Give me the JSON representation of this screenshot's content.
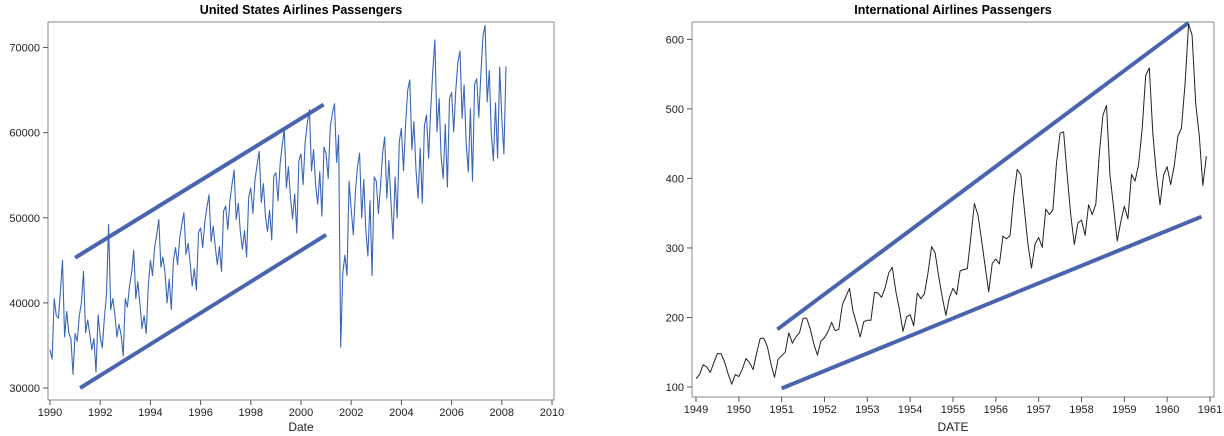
{
  "chart_data": [
    {
      "type": "line",
      "title": "United States Airlines Passengers",
      "xlabel": "Date",
      "ylabel": "",
      "xlim": [
        1990,
        2010
      ],
      "ylim": [
        30000,
        73000
      ],
      "xticks": [
        "1990",
        "1992",
        "1994",
        "1996",
        "1998",
        "2000",
        "2002",
        "2004",
        "2006",
        "2008",
        "2010"
      ],
      "yticks": [
        "30000",
        "40000",
        "50000",
        "60000",
        "70000"
      ],
      "grid": false,
      "line_color": "#3a66b8",
      "trend_color": "#4a65ae",
      "series": [
        {
          "x": [
            1990.0,
            1990.083,
            1990.167,
            1990.25,
            1990.333,
            1990.417,
            1990.5,
            1990.583,
            1990.667,
            1990.75,
            1990.833,
            1990.917,
            1991.0,
            1991.083,
            1991.167,
            1991.25,
            1991.333,
            1991.417,
            1991.5,
            1991.583,
            1991.667,
            1991.75,
            1991.833,
            1991.917,
            1992.0,
            1992.083,
            1992.167,
            1992.25,
            1992.333,
            1992.417,
            1992.5,
            1992.583,
            1992.667,
            1992.75,
            1992.833,
            1992.917,
            1993.0,
            1993.083,
            1993.167,
            1993.25,
            1993.333,
            1993.417,
            1993.5,
            1993.583,
            1993.667,
            1993.75,
            1993.833,
            1993.917,
            1994.0,
            1994.083,
            1994.167,
            1994.25,
            1994.333,
            1994.417,
            1994.5,
            1994.583,
            1994.667,
            1994.75,
            1994.833,
            1994.917,
            1995.0,
            1995.083,
            1995.167,
            1995.25,
            1995.333,
            1995.417,
            1995.5,
            1995.583,
            1995.667,
            1995.75,
            1995.833,
            1995.917,
            1996.0,
            1996.083,
            1996.167,
            1996.25,
            1996.333,
            1996.417,
            1996.5,
            1996.583,
            1996.667,
            1996.75,
            1996.833,
            1996.917,
            1997.0,
            1997.083,
            1997.167,
            1997.25,
            1997.333,
            1997.417,
            1997.5,
            1997.583,
            1997.667,
            1997.75,
            1997.833,
            1997.917,
            1998.0,
            1998.083,
            1998.167,
            1998.25,
            1998.333,
            1998.417,
            1998.5,
            1998.583,
            1998.667,
            1998.75,
            1998.833,
            1998.917,
            1999.0,
            1999.083,
            1999.167,
            1999.25,
            1999.333,
            1999.417,
            1999.5,
            1999.583,
            1999.667,
            1999.75,
            1999.833,
            1999.917,
            2000.0,
            2000.083,
            2000.167,
            2000.25,
            2000.333,
            2000.417,
            2000.5,
            2000.583,
            2000.667,
            2000.75,
            2000.833,
            2000.917,
            2001.0,
            2001.083,
            2001.167,
            2001.25,
            2001.333,
            2001.417,
            2001.5,
            2001.583,
            2001.667,
            2001.75,
            2001.833,
            2001.917,
            2002.0,
            2002.083,
            2002.167,
            2002.25,
            2002.333,
            2002.417,
            2002.5,
            2002.583,
            2002.667,
            2002.75,
            2002.833,
            2002.917,
            2003.0,
            2003.083,
            2003.167,
            2003.25,
            2003.333,
            2003.417,
            2003.5,
            2003.583,
            2003.667,
            2003.75,
            2003.833,
            2003.917,
            2004.0,
            2004.083,
            2004.167,
            2004.25,
            2004.333,
            2004.417,
            2004.5,
            2004.583,
            2004.667,
            2004.75,
            2004.833,
            2004.917,
            2005.0,
            2005.083,
            2005.167,
            2005.25,
            2005.333,
            2005.417,
            2005.5,
            2005.583,
            2005.667,
            2005.75,
            2005.833,
            2005.917,
            2006.0,
            2006.083,
            2006.167,
            2006.25,
            2006.333,
            2006.417,
            2006.5,
            2006.583,
            2006.667,
            2006.75,
            2006.833,
            2006.917,
            2007.0,
            2007.083,
            2007.167,
            2007.25,
            2007.333,
            2007.417,
            2007.5,
            2007.583,
            2007.667,
            2007.75,
            2007.833,
            2007.917,
            2008.0,
            2008.083,
            2008.167
          ],
          "y": [
            34500,
            33400,
            40500,
            38500,
            38200,
            41500,
            45000,
            36000,
            39000,
            36500,
            35800,
            31600,
            36400,
            35500,
            38500,
            40000,
            43700,
            36500,
            38000,
            36400,
            34500,
            35800,
            31900,
            38600,
            36000,
            34700,
            38300,
            41000,
            49200,
            39200,
            40500,
            38700,
            36000,
            37500,
            36200,
            33800,
            40500,
            39500,
            42000,
            43500,
            46200,
            40500,
            42500,
            39900,
            37000,
            38500,
            36400,
            42000,
            45000,
            43200,
            46500,
            48000,
            49800,
            44200,
            45400,
            43600,
            40000,
            42800,
            39200,
            45000,
            46500,
            44500,
            47600,
            49200,
            50600,
            45700,
            47000,
            44800,
            42000,
            44000,
            41500,
            48300,
            48800,
            46500,
            49500,
            51200,
            52700,
            47200,
            49000,
            46700,
            44500,
            46600,
            43700,
            50800,
            51400,
            48600,
            52000,
            53900,
            55600,
            49800,
            51700,
            48400,
            46300,
            48500,
            45400,
            52400,
            53500,
            50500,
            54500,
            56200,
            57800,
            51800,
            54000,
            50200,
            48400,
            50900,
            47400,
            54900,
            55300,
            52000,
            56300,
            58500,
            60400,
            53500,
            56000,
            52300,
            49900,
            52800,
            48200,
            56700,
            57500,
            53900,
            58900,
            61100,
            62700,
            55500,
            58000,
            53900,
            51600,
            55400,
            50200,
            58300,
            57500,
            54600,
            60700,
            62300,
            63400,
            56500,
            59700,
            34800,
            43500,
            45600,
            43200,
            54300,
            51000,
            48000,
            53000,
            56000,
            57600,
            50000,
            54500,
            48600,
            45500,
            52000,
            43200,
            54800,
            54300,
            50500,
            53700,
            57600,
            59500,
            52300,
            56700,
            52000,
            47500,
            54800,
            50000,
            59000,
            60500,
            55500,
            61000,
            65000,
            66200,
            58000,
            61300,
            55600,
            52300,
            58200,
            51700,
            60800,
            62100,
            57000,
            62700,
            67300,
            70900,
            60100,
            64000,
            57200,
            54600,
            61000,
            53600,
            64000,
            64700,
            60100,
            65000,
            68300,
            69600,
            61700,
            65600,
            58700,
            55400,
            62800,
            54300,
            65700,
            66300,
            61800,
            67000,
            71400,
            72600,
            63600,
            67300,
            59800,
            56700,
            63500,
            57000,
            67700,
            61700,
            57500,
            67800
          ]
        }
      ],
      "trend_lines": [
        {
          "x": [
            1991.0,
            2000.9
          ],
          "y": [
            45300,
            63300
          ]
        },
        {
          "x": [
            1991.2,
            2001.0
          ],
          "y": [
            30000,
            48000
          ]
        }
      ]
    },
    {
      "type": "line",
      "title": "International Airlines Passengers",
      "xlabel": "DATE",
      "ylabel": "",
      "xlim": [
        1949,
        1961
      ],
      "ylim": [
        100,
        625
      ],
      "xticks": [
        "1949",
        "1950",
        "1951",
        "1952",
        "1953",
        "1954",
        "1955",
        "1956",
        "1957",
        "1958",
        "1959",
        "1960",
        "1961"
      ],
      "yticks": [
        "100",
        "200",
        "300",
        "400",
        "500",
        "600"
      ],
      "grid": false,
      "line_color": "#222222",
      "trend_color": "#4a65ae",
      "series": [
        {
          "x_start": 1949,
          "step": 0.08333,
          "y": [
            112,
            118,
            132,
            129,
            121,
            135,
            148,
            148,
            136,
            119,
            104,
            118,
            115,
            126,
            141,
            135,
            125,
            149,
            170,
            170,
            158,
            133,
            114,
            140,
            145,
            150,
            178,
            163,
            172,
            178,
            199,
            199,
            184,
            162,
            146,
            166,
            171,
            180,
            193,
            181,
            183,
            218,
            230,
            242,
            209,
            191,
            172,
            194,
            196,
            196,
            236,
            235,
            229,
            243,
            264,
            272,
            237,
            211,
            180,
            201,
            204,
            188,
            235,
            227,
            234,
            264,
            302,
            293,
            259,
            229,
            203,
            229,
            242,
            233,
            267,
            269,
            270,
            315,
            364,
            347,
            312,
            274,
            237,
            278,
            284,
            277,
            317,
            313,
            318,
            374,
            413,
            405,
            355,
            306,
            271,
            306,
            315,
            301,
            356,
            348,
            355,
            422,
            465,
            467,
            404,
            347,
            305,
            336,
            340,
            318,
            362,
            348,
            363,
            435,
            491,
            505,
            404,
            359,
            310,
            337,
            360,
            342,
            406,
            396,
            420,
            472,
            548,
            559,
            463,
            407,
            362,
            405,
            417,
            391,
            419,
            461,
            472,
            535,
            622,
            606,
            508,
            461,
            390,
            432
          ]
        }
      ],
      "trend_lines": [
        {
          "x": [
            1950.9,
            1960.5
          ],
          "y": [
            183,
            624
          ]
        },
        {
          "x": [
            1951.0,
            1960.8
          ],
          "y": [
            98,
            345
          ]
        }
      ]
    }
  ]
}
